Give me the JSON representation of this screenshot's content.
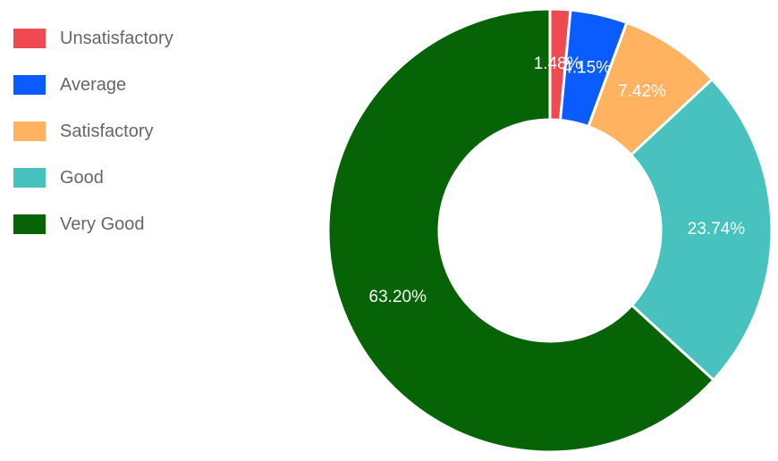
{
  "chart_data": {
    "type": "pie",
    "variant": "doughnut",
    "legend_position": "left",
    "categories": [
      "Unsatisfactory",
      "Average",
      "Satisfactory",
      "Good",
      "Very Good"
    ],
    "values": [
      1.48,
      4.15,
      7.42,
      23.74,
      63.2
    ],
    "labels": [
      "1.48%",
      "4.15%",
      "7.42%",
      "23.74%",
      "63.20%"
    ],
    "colors": [
      "#ef4a52",
      "#0b5cff",
      "#ffb25f",
      "#47c2bf",
      "#066306"
    ]
  }
}
